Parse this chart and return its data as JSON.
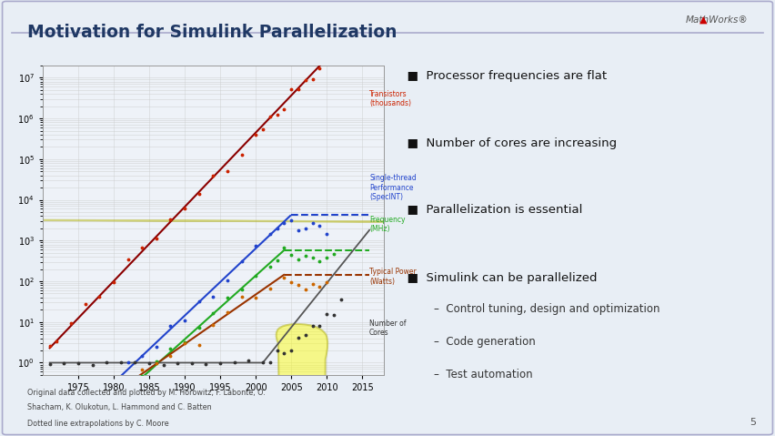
{
  "title": "Motivation for Simulink Parallelization",
  "slide_bg": "#e8eef5",
  "plot_bg": "#eef2f8",
  "title_color": "#1f3864",
  "xlabel_ticks": [
    1975,
    1980,
    1985,
    1990,
    1995,
    2000,
    2005,
    2010,
    2015
  ],
  "xlim": [
    1970,
    2018
  ],
  "ylim_low": 0.5,
  "ylim_high": 20000000.0,
  "bullet_points": [
    "Processor frequencies are flat",
    "Number of cores are increasing",
    "Parallelization is essential",
    "Simulink can be parallelized"
  ],
  "sub_bullets": [
    "Control tuning, design and optimization",
    "Code generation",
    "Test automation"
  ],
  "footnote1": "Original data collected and plotted by M. Horowitz, F. Labonte, O.",
  "footnote2": "Shacham, K. Olukotun, L. Hammond and C. Batten",
  "footnote3": "Dotted line extrapolations by C. Moore",
  "label_transistors": "Transistors\n(thousands)",
  "label_singlethread": "Single-thread\nPerformance\n(SpecINT)",
  "label_frequency": "Frequency\n(MHz)",
  "label_power": "Typical Power\n(Watts)",
  "label_cores": "Number of\nCores",
  "color_transistors": "#cc2200",
  "color_transistors_line": "#8b0000",
  "color_singlethread": "#2244cc",
  "color_frequency": "#22aa22",
  "color_power_dot": "#cc6600",
  "color_power_line": "#993300",
  "color_cores": "#333333",
  "color_cores_line": "#555555",
  "ellipse_face": "yellow",
  "ellipse_edge": "#aaaa00",
  "grid_color": "#cccccc",
  "border_color": "#aaaacc",
  "accent_line_color": "#aaaacc"
}
